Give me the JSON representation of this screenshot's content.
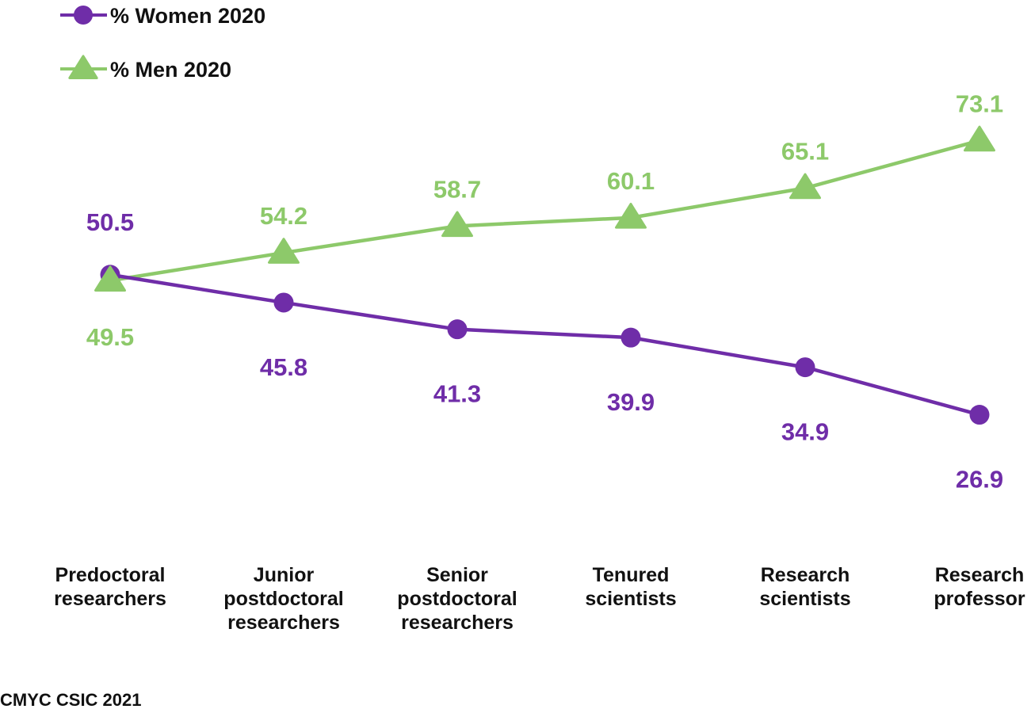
{
  "chart_data": {
    "type": "line",
    "title": "",
    "xlabel": "",
    "ylabel": "",
    "ylim": [
      20,
      80
    ],
    "grid": false,
    "legend_position": "top-left",
    "categories": [
      [
        "Predoctoral",
        "researchers"
      ],
      [
        "Junior",
        "postdoctoral",
        "researchers"
      ],
      [
        "Senior",
        "postdoctoral",
        "researchers"
      ],
      [
        "Tenured",
        "scientists"
      ],
      [
        "Research",
        "scientists"
      ],
      [
        "Research",
        "professor"
      ]
    ],
    "series": [
      {
        "name": "% Women 2020",
        "color": "#6f2da8",
        "marker": "circle",
        "values": [
          50.5,
          45.8,
          41.3,
          39.9,
          34.9,
          26.9
        ],
        "labels": [
          "50.5",
          "45.8",
          "41.3",
          "39.9",
          "34.9",
          "26.9"
        ],
        "label_side": [
          "above",
          "below",
          "below",
          "below",
          "below",
          "below"
        ]
      },
      {
        "name": "% Men 2020",
        "color": "#8dc96a",
        "marker": "triangle",
        "values": [
          49.5,
          54.2,
          58.7,
          60.1,
          65.1,
          73.1
        ],
        "labels": [
          "49.5",
          "54.2",
          "58.7",
          "60.1",
          "65.1",
          "73.1"
        ],
        "label_side": [
          "below",
          "above",
          "above",
          "above",
          "above",
          "above"
        ]
      }
    ],
    "source": "CMYC CSIC 2021"
  }
}
